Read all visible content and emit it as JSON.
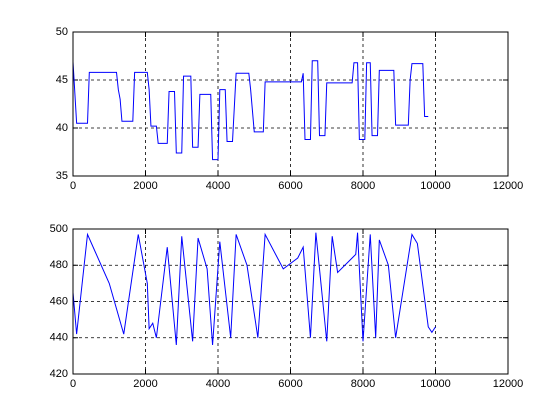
{
  "chart_data": [
    {
      "type": "line",
      "x": [
        0,
        100,
        400,
        450,
        1200,
        1250,
        1300,
        1350,
        1650,
        1700,
        2050,
        2100,
        2150,
        2300,
        2350,
        2600,
        2650,
        2800,
        2850,
        3000,
        3050,
        3250,
        3300,
        3450,
        3500,
        3800,
        3850,
        4000,
        4050,
        4200,
        4250,
        4400,
        4500,
        4850,
        4900,
        5000,
        5250,
        5300,
        6300,
        6350,
        6400,
        6550,
        6600,
        6750,
        6800,
        6950,
        7000,
        7700,
        7750,
        7850,
        7900,
        8050,
        8100,
        8200,
        8250,
        8400,
        8450,
        8850,
        8900,
        9250,
        9300,
        9350,
        9650,
        9700,
        9800
      ],
      "series": [
        {
          "color": "#0000ff",
          "values": [
            46.9,
            40.5,
            40.5,
            45.8,
            45.8,
            44,
            43,
            40.7,
            40.7,
            45.8,
            45.8,
            44,
            40.2,
            40.2,
            38.4,
            38.4,
            43.8,
            43.8,
            37.4,
            37.4,
            45.4,
            45.4,
            38,
            38,
            43.5,
            43.5,
            36.7,
            36.7,
            44,
            44,
            38.6,
            38.6,
            45.7,
            45.7,
            44,
            39.6,
            39.6,
            44.8,
            44.8,
            45.7,
            38.8,
            38.8,
            47,
            47,
            39.2,
            39.2,
            44.7,
            44.7,
            46.8,
            46.8,
            38.8,
            38.8,
            46.8,
            46.8,
            39.2,
            39.2,
            46,
            46,
            40.3,
            40.3,
            45,
            46.7,
            46.7,
            41.2,
            41.2
          ]
        }
      ],
      "xlim": [
        0,
        12000
      ],
      "xticks": [
        0,
        2000,
        4000,
        6000,
        8000,
        10000,
        12000
      ],
      "ylim": [
        35,
        50
      ],
      "yticks": [
        35,
        40,
        45,
        50
      ],
      "grid": true
    },
    {
      "type": "line",
      "x": [
        0,
        100,
        400,
        600,
        1000,
        1400,
        1800,
        2050,
        2100,
        2200,
        2300,
        2600,
        2850,
        3000,
        3300,
        3450,
        3700,
        3850,
        4050,
        4350,
        4500,
        4800,
        5100,
        5300,
        5800,
        6200,
        6350,
        6550,
        6700,
        7000,
        7150,
        7300,
        7600,
        7800,
        7850,
        8000,
        8200,
        8350,
        8450,
        8700,
        8900,
        9350,
        9500,
        9800,
        9900,
        10000
      ],
      "series": [
        {
          "color": "#0000ff",
          "values": [
            465,
            442,
            497,
            488,
            470,
            442,
            497,
            470,
            445,
            448,
            440,
            490,
            436,
            496,
            438,
            495,
            478,
            436,
            493,
            440,
            497,
            480,
            440,
            497,
            478,
            484,
            490,
            440,
            498,
            438,
            496,
            476,
            482,
            486,
            498,
            438,
            497,
            440,
            494,
            480,
            440,
            497,
            492,
            446,
            443,
            446
          ]
        }
      ],
      "xlim": [
        0,
        12000
      ],
      "xticks": [
        0,
        2000,
        4000,
        6000,
        8000,
        10000,
        12000
      ],
      "ylim": [
        420,
        500
      ],
      "yticks": [
        420,
        440,
        460,
        480,
        500
      ],
      "grid": true
    }
  ]
}
